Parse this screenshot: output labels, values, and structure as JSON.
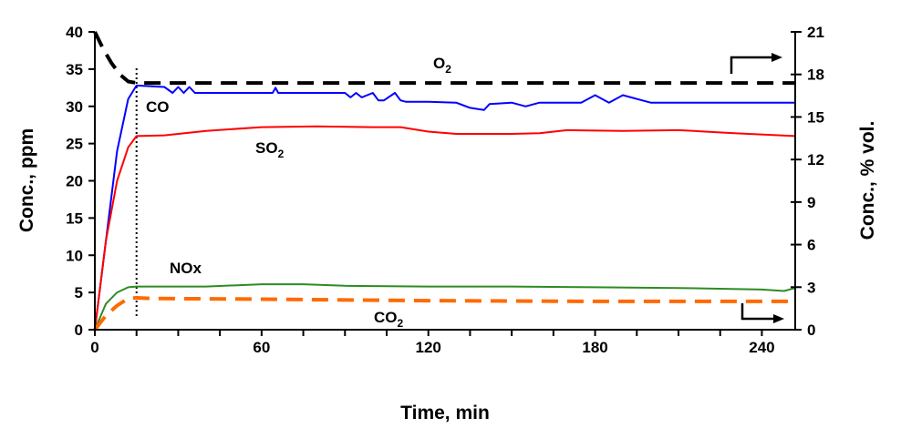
{
  "chart_data": {
    "type": "line",
    "xlabel": "Time, min",
    "ylabel": "Conc., ppm",
    "y2label": "Conc., % vol.",
    "xlim": [
      0,
      252
    ],
    "ylim": [
      0,
      40
    ],
    "y2lim": [
      0,
      21
    ],
    "xticks": [
      "0",
      "60",
      "120",
      "180",
      "240"
    ],
    "xtick_values": [
      0,
      60,
      120,
      180,
      240
    ],
    "xminor_step": 15,
    "yticks": [
      "0",
      "5",
      "10",
      "15",
      "20",
      "25",
      "30",
      "35",
      "40"
    ],
    "ytick_values": [
      0,
      5,
      10,
      15,
      20,
      25,
      30,
      35,
      40
    ],
    "y2ticks": [
      "0",
      "3",
      "6",
      "9",
      "12",
      "15",
      "18",
      "21"
    ],
    "y2tick_values": [
      0,
      3,
      6,
      9,
      12,
      15,
      18,
      21
    ],
    "grid": false,
    "vline_x": 15,
    "series": [
      {
        "name": "O2",
        "label_main": "O",
        "label_sub": "2",
        "axis": "right",
        "color": "#000000",
        "style": "dashed",
        "x": [
          0,
          3,
          6,
          9,
          12,
          15,
          252
        ],
        "y": [
          21,
          19.8,
          18.8,
          18.0,
          17.5,
          17.4,
          17.4
        ]
      },
      {
        "name": "CO",
        "label_main": "CO",
        "label_sub": "",
        "axis": "left",
        "color": "#0000ff",
        "style": "solid",
        "x": [
          0,
          4,
          8,
          12,
          15,
          25,
          28,
          30,
          32,
          34,
          36,
          64,
          65,
          66,
          90,
          92,
          94,
          96,
          100,
          102,
          104,
          108,
          110,
          112,
          120,
          130,
          135,
          140,
          142,
          150,
          155,
          160,
          175,
          180,
          185,
          190,
          200,
          210,
          230,
          240,
          252
        ],
        "y": [
          0,
          12,
          24,
          31,
          32.8,
          32.6,
          31.8,
          32.6,
          31.8,
          32.6,
          31.8,
          31.8,
          32.5,
          31.8,
          31.8,
          31.2,
          31.8,
          31.2,
          31.8,
          30.8,
          30.8,
          31.8,
          30.8,
          30.6,
          30.6,
          30.5,
          29.8,
          29.5,
          30.3,
          30.5,
          30.0,
          30.5,
          30.5,
          31.5,
          30.5,
          31.5,
          30.5,
          30.5,
          30.5,
          30.5,
          30.5
        ]
      },
      {
        "name": "SO2",
        "label_main": "SO",
        "label_sub": "2",
        "axis": "left",
        "color": "#ff0000",
        "style": "solid",
        "x": [
          0,
          4,
          8,
          12,
          15,
          25,
          40,
          60,
          80,
          100,
          110,
          120,
          130,
          150,
          160,
          170,
          190,
          210,
          230,
          252
        ],
        "y": [
          0,
          12,
          20,
          24.5,
          26,
          26.1,
          26.7,
          27.2,
          27.3,
          27.2,
          27.2,
          26.6,
          26.3,
          26.3,
          26.4,
          26.8,
          26.7,
          26.8,
          26.4,
          26.0
        ]
      },
      {
        "name": "NOx",
        "label_main": "NOx",
        "label_sub": "",
        "axis": "left",
        "color": "#2e8b22",
        "style": "solid",
        "x": [
          0,
          4,
          8,
          12,
          15,
          40,
          60,
          75,
          90,
          120,
          150,
          180,
          210,
          240,
          248,
          252
        ],
        "y": [
          0,
          3.5,
          5.0,
          5.7,
          5.8,
          5.8,
          6.1,
          6.1,
          5.9,
          5.8,
          5.8,
          5.7,
          5.6,
          5.4,
          5.2,
          5.6
        ]
      },
      {
        "name": "CO2",
        "label_main": "CO",
        "label_sub": "2",
        "axis": "right",
        "color": "#ff6a00",
        "style": "dashed",
        "x": [
          0,
          4,
          8,
          12,
          15,
          20,
          60,
          120,
          180,
          252
        ],
        "y": [
          0,
          1.0,
          1.7,
          2.2,
          2.25,
          2.2,
          2.15,
          2.05,
          2.0,
          2.0
        ]
      }
    ]
  }
}
